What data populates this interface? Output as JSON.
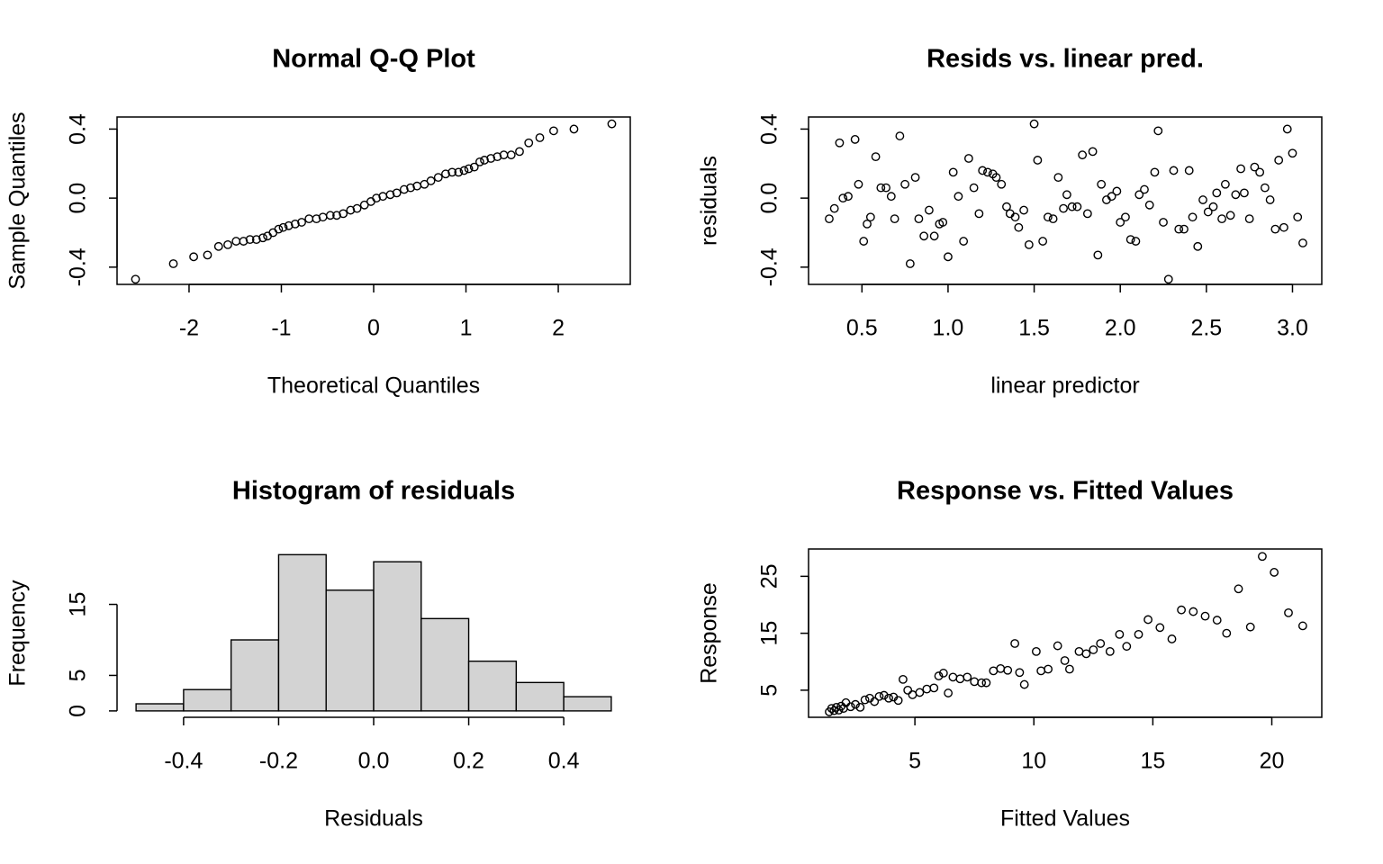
{
  "chart_data": [
    {
      "type": "scatter",
      "title": "Normal Q-Q Plot",
      "xlabel": "Theoretical Quantiles",
      "ylabel": "Sample Quantiles",
      "x": [
        -2.58,
        -2.17,
        -1.95,
        -1.8,
        -1.68,
        -1.58,
        -1.49,
        -1.41,
        -1.34,
        -1.27,
        -1.2,
        -1.15,
        -1.09,
        -1.03,
        -0.98,
        -0.92,
        -0.85,
        -0.78,
        -0.7,
        -0.62,
        -0.55,
        -0.47,
        -0.4,
        -0.33,
        -0.25,
        -0.18,
        -0.1,
        -0.03,
        0.03,
        0.1,
        0.18,
        0.25,
        0.33,
        0.4,
        0.47,
        0.55,
        0.62,
        0.7,
        0.78,
        0.85,
        0.92,
        0.98,
        1.03,
        1.09,
        1.15,
        1.2,
        1.27,
        1.34,
        1.41,
        1.49,
        1.58,
        1.68,
        1.8,
        1.95,
        2.17,
        2.58
      ],
      "y": [
        -0.47,
        -0.38,
        -0.34,
        -0.33,
        -0.28,
        -0.27,
        -0.25,
        -0.25,
        -0.24,
        -0.24,
        -0.23,
        -0.22,
        -0.2,
        -0.18,
        -0.17,
        -0.16,
        -0.15,
        -0.14,
        -0.12,
        -0.12,
        -0.11,
        -0.1,
        -0.1,
        -0.09,
        -0.07,
        -0.06,
        -0.04,
        -0.02,
        0.0,
        0.01,
        0.02,
        0.03,
        0.05,
        0.06,
        0.07,
        0.08,
        0.1,
        0.12,
        0.14,
        0.15,
        0.15,
        0.16,
        0.17,
        0.18,
        0.21,
        0.22,
        0.23,
        0.24,
        0.25,
        0.25,
        0.27,
        0.32,
        0.35,
        0.39,
        0.4,
        0.43
      ],
      "xlim": [
        -2.78,
        2.78
      ],
      "ylim": [
        -0.5,
        0.47
      ],
      "xticks": [
        -2,
        -1,
        0,
        1,
        2
      ],
      "yticks": [
        {
          "value": -0.4,
          "label": "-0.4"
        },
        {
          "value": 0,
          "label": "0.0"
        },
        0.4
      ]
    },
    {
      "type": "scatter",
      "title": "Resids vs. linear pred.",
      "xlabel": "linear predictor",
      "ylabel": "residuals",
      "x": [
        0.31,
        0.34,
        0.37,
        0.39,
        0.42,
        0.46,
        0.48,
        0.51,
        0.53,
        0.55,
        0.58,
        0.61,
        0.64,
        0.67,
        0.69,
        0.72,
        0.75,
        0.78,
        0.81,
        0.83,
        0.86,
        0.89,
        0.92,
        0.95,
        0.97,
        1.0,
        1.03,
        1.06,
        1.09,
        1.12,
        1.15,
        1.18,
        1.2,
        1.23,
        1.26,
        1.28,
        1.31,
        1.34,
        1.36,
        1.39,
        1.41,
        1.44,
        1.47,
        1.5,
        1.52,
        1.55,
        1.58,
        1.61,
        1.64,
        1.67,
        1.69,
        1.72,
        1.75,
        1.78,
        1.81,
        1.84,
        1.87,
        1.89,
        1.92,
        1.95,
        1.98,
        2.0,
        2.03,
        2.06,
        2.09,
        2.11,
        2.14,
        2.17,
        2.2,
        2.22,
        2.25,
        2.28,
        2.31,
        2.34,
        2.37,
        2.4,
        2.42,
        2.45,
        2.48,
        2.51,
        2.54,
        2.56,
        2.59,
        2.61,
        2.64,
        2.67,
        2.7,
        2.72,
        2.75,
        2.78,
        2.81,
        2.84,
        2.87,
        2.9,
        2.92,
        2.95,
        2.97,
        3.0,
        3.03,
        3.06
      ],
      "y": [
        -0.12,
        -0.06,
        0.32,
        0.0,
        0.01,
        0.34,
        0.08,
        -0.25,
        -0.15,
        -0.11,
        0.24,
        0.06,
        0.06,
        0.01,
        -0.12,
        0.36,
        0.08,
        -0.38,
        0.12,
        -0.12,
        -0.22,
        -0.07,
        -0.22,
        -0.15,
        -0.14,
        -0.34,
        0.15,
        0.01,
        -0.25,
        0.23,
        0.06,
        -0.09,
        0.16,
        0.15,
        0.14,
        0.12,
        0.08,
        -0.05,
        -0.09,
        -0.11,
        -0.17,
        -0.07,
        -0.27,
        0.43,
        0.22,
        -0.25,
        -0.11,
        -0.12,
        0.12,
        -0.06,
        0.02,
        -0.05,
        -0.05,
        0.25,
        -0.09,
        0.27,
        -0.33,
        0.08,
        -0.01,
        0.01,
        0.04,
        -0.14,
        -0.11,
        -0.24,
        -0.25,
        0.02,
        0.05,
        -0.04,
        0.15,
        0.39,
        -0.14,
        -0.47,
        0.16,
        -0.18,
        -0.18,
        0.16,
        -0.11,
        -0.28,
        -0.01,
        -0.08,
        -0.05,
        0.03,
        -0.12,
        0.08,
        -0.1,
        0.02,
        0.17,
        0.03,
        -0.12,
        0.18,
        0.15,
        0.06,
        -0.01,
        -0.18,
        0.22,
        -0.17,
        0.4,
        0.26,
        -0.11,
        -0.26
      ],
      "xlim": [
        0.19,
        3.17
      ],
      "ylim": [
        -0.5,
        0.47
      ],
      "xticks": [
        0.5,
        {
          "value": 1,
          "label": "1.0"
        },
        1.5,
        {
          "value": 2,
          "label": "2.0"
        },
        2.5,
        {
          "value": 3,
          "label": "3.0"
        }
      ],
      "yticks": [
        {
          "value": -0.4,
          "label": "-0.4"
        },
        {
          "value": 0,
          "label": "0.0"
        },
        0.4
      ]
    },
    {
      "type": "histogram",
      "title": "Histogram of residuals",
      "xlabel": "Residuals",
      "ylabel": "Frequency",
      "color": "#d3d3d3",
      "bins": [
        -0.5,
        -0.4,
        -0.3,
        -0.2,
        -0.1,
        0.0,
        0.1,
        0.2,
        0.3,
        0.4,
        0.5
      ],
      "counts": [
        1,
        3,
        10,
        22,
        17,
        21,
        13,
        7,
        4,
        2
      ],
      "xlim": [
        -0.54,
        0.54
      ],
      "ylim": [
        -0.9,
        22.8
      ],
      "xticks": [
        {
          "value": -0.4,
          "label": "-0.4"
        },
        -0.2,
        {
          "value": 0,
          "label": "0.0"
        },
        0.2,
        0.4
      ],
      "yticks": [
        0,
        5,
        15
      ]
    },
    {
      "type": "scatter",
      "title": "Response vs. Fitted Values",
      "xlabel": "Fitted Values",
      "ylabel": "Response",
      "x": [
        1.4,
        1.5,
        1.6,
        1.7,
        1.8,
        1.9,
        2.0,
        2.1,
        2.3,
        2.5,
        2.7,
        2.9,
        3.1,
        3.3,
        3.5,
        3.7,
        3.9,
        4.1,
        4.3,
        4.5,
        4.7,
        4.9,
        5.2,
        5.5,
        5.8,
        6.0,
        6.2,
        6.4,
        6.6,
        6.9,
        7.2,
        7.5,
        7.8,
        8.0,
        8.3,
        8.6,
        8.9,
        9.2,
        9.4,
        9.6,
        10.1,
        10.3,
        10.6,
        11.0,
        11.3,
        11.5,
        11.9,
        12.2,
        12.5,
        12.8,
        13.2,
        13.6,
        13.9,
        14.4,
        14.8,
        15.3,
        15.8,
        16.2,
        16.7,
        17.2,
        17.7,
        18.1,
        18.6,
        19.1,
        19.6,
        20.1,
        20.7,
        21.3
      ],
      "y": [
        1.2,
        1.8,
        1.4,
        2.0,
        1.5,
        2.2,
        1.8,
        2.8,
        2.1,
        2.5,
        2.0,
        3.3,
        3.6,
        3.0,
        3.9,
        4.1,
        3.6,
        3.8,
        3.2,
        6.9,
        5.0,
        4.2,
        4.6,
        5.2,
        5.4,
        7.5,
        8.0,
        4.5,
        7.3,
        7.0,
        7.3,
        6.5,
        6.3,
        6.3,
        8.4,
        8.8,
        8.5,
        13.2,
        8.1,
        6.0,
        11.8,
        8.4,
        8.7,
        12.8,
        10.2,
        8.7,
        11.8,
        11.4,
        12.1,
        13.2,
        11.8,
        14.8,
        12.7,
        14.8,
        17.4,
        16.0,
        14.0,
        19.1,
        18.8,
        18.0,
        17.3,
        15.0,
        22.8,
        16.1,
        28.5,
        25.7,
        18.6,
        16.3
      ],
      "xlim": [
        0.53,
        22.1
      ],
      "ylim": [
        0.24,
        29.8
      ],
      "xticks": [
        5,
        10,
        15,
        20
      ],
      "yticks": [
        5,
        15,
        25
      ]
    }
  ]
}
